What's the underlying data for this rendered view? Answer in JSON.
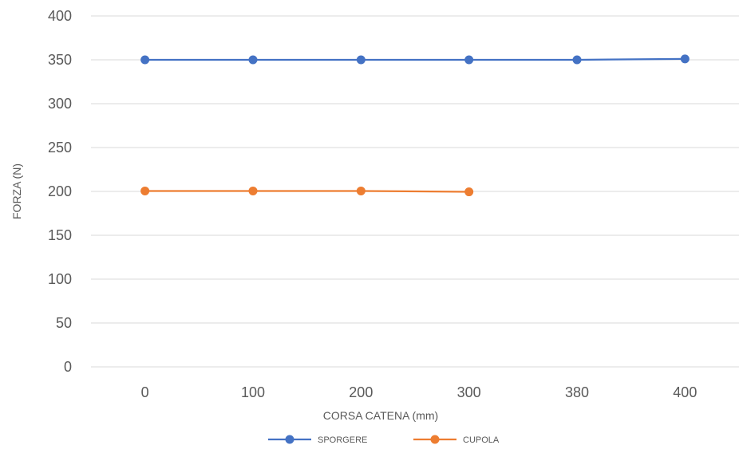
{
  "chart_data": {
    "type": "line",
    "title": "",
    "xlabel": "CORSA CATENA  (mm)",
    "ylabel": "FORZA (N)",
    "categories": [
      "0",
      "100",
      "200",
      "300",
      "380",
      "400"
    ],
    "ylim": [
      0,
      400
    ],
    "yticks": [
      0,
      50,
      100,
      150,
      200,
      250,
      300,
      350,
      400
    ],
    "grid": true,
    "legend": "bottom",
    "series": [
      {
        "name": "SPORGERE",
        "color": "#4472C4",
        "values": [
          350,
          350,
          350,
          350,
          350,
          351
        ]
      },
      {
        "name": "CUPOLA",
        "color": "#ED7D31",
        "values": [
          200.5,
          200.5,
          200.5,
          199.5,
          null,
          null
        ]
      }
    ]
  }
}
